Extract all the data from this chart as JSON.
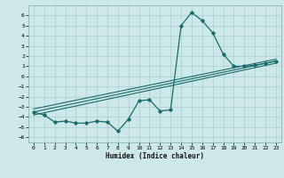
{
  "xlabel": "Humidex (Indice chaleur)",
  "background_color": "#cce8e8",
  "grid_color": "#aacfcf",
  "line_color": "#1a6b6b",
  "xlim": [
    -0.5,
    23.5
  ],
  "ylim": [
    -6.5,
    7.0
  ],
  "x_ticks": [
    0,
    1,
    2,
    3,
    4,
    5,
    6,
    7,
    8,
    9,
    10,
    11,
    12,
    13,
    14,
    15,
    16,
    17,
    18,
    19,
    20,
    21,
    22,
    23
  ],
  "y_ticks": [
    -6,
    -5,
    -4,
    -3,
    -2,
    -1,
    0,
    1,
    2,
    3,
    4,
    5,
    6
  ],
  "curve1_x": [
    0,
    1,
    2,
    3,
    4,
    5,
    6,
    7,
    8,
    9,
    10,
    11,
    12,
    13,
    14,
    15,
    16,
    17,
    18,
    19,
    20,
    21,
    22,
    23
  ],
  "curve1_y": [
    -3.5,
    -3.8,
    -4.5,
    -4.4,
    -4.6,
    -4.6,
    -4.4,
    -4.5,
    -5.4,
    -4.2,
    -2.4,
    -2.3,
    -3.4,
    -3.3,
    5.0,
    6.3,
    5.5,
    4.3,
    2.2,
    1.0,
    1.0,
    1.1,
    1.3,
    1.5
  ],
  "line1_x": [
    0,
    23
  ],
  "line1_y": [
    -3.5,
    1.5
  ],
  "line2_x": [
    0,
    23
  ],
  "line2_y": [
    -3.2,
    1.7
  ],
  "line3_x": [
    0,
    23
  ],
  "line3_y": [
    -3.8,
    1.3
  ],
  "figsize": [
    3.2,
    2.0
  ],
  "dpi": 100
}
